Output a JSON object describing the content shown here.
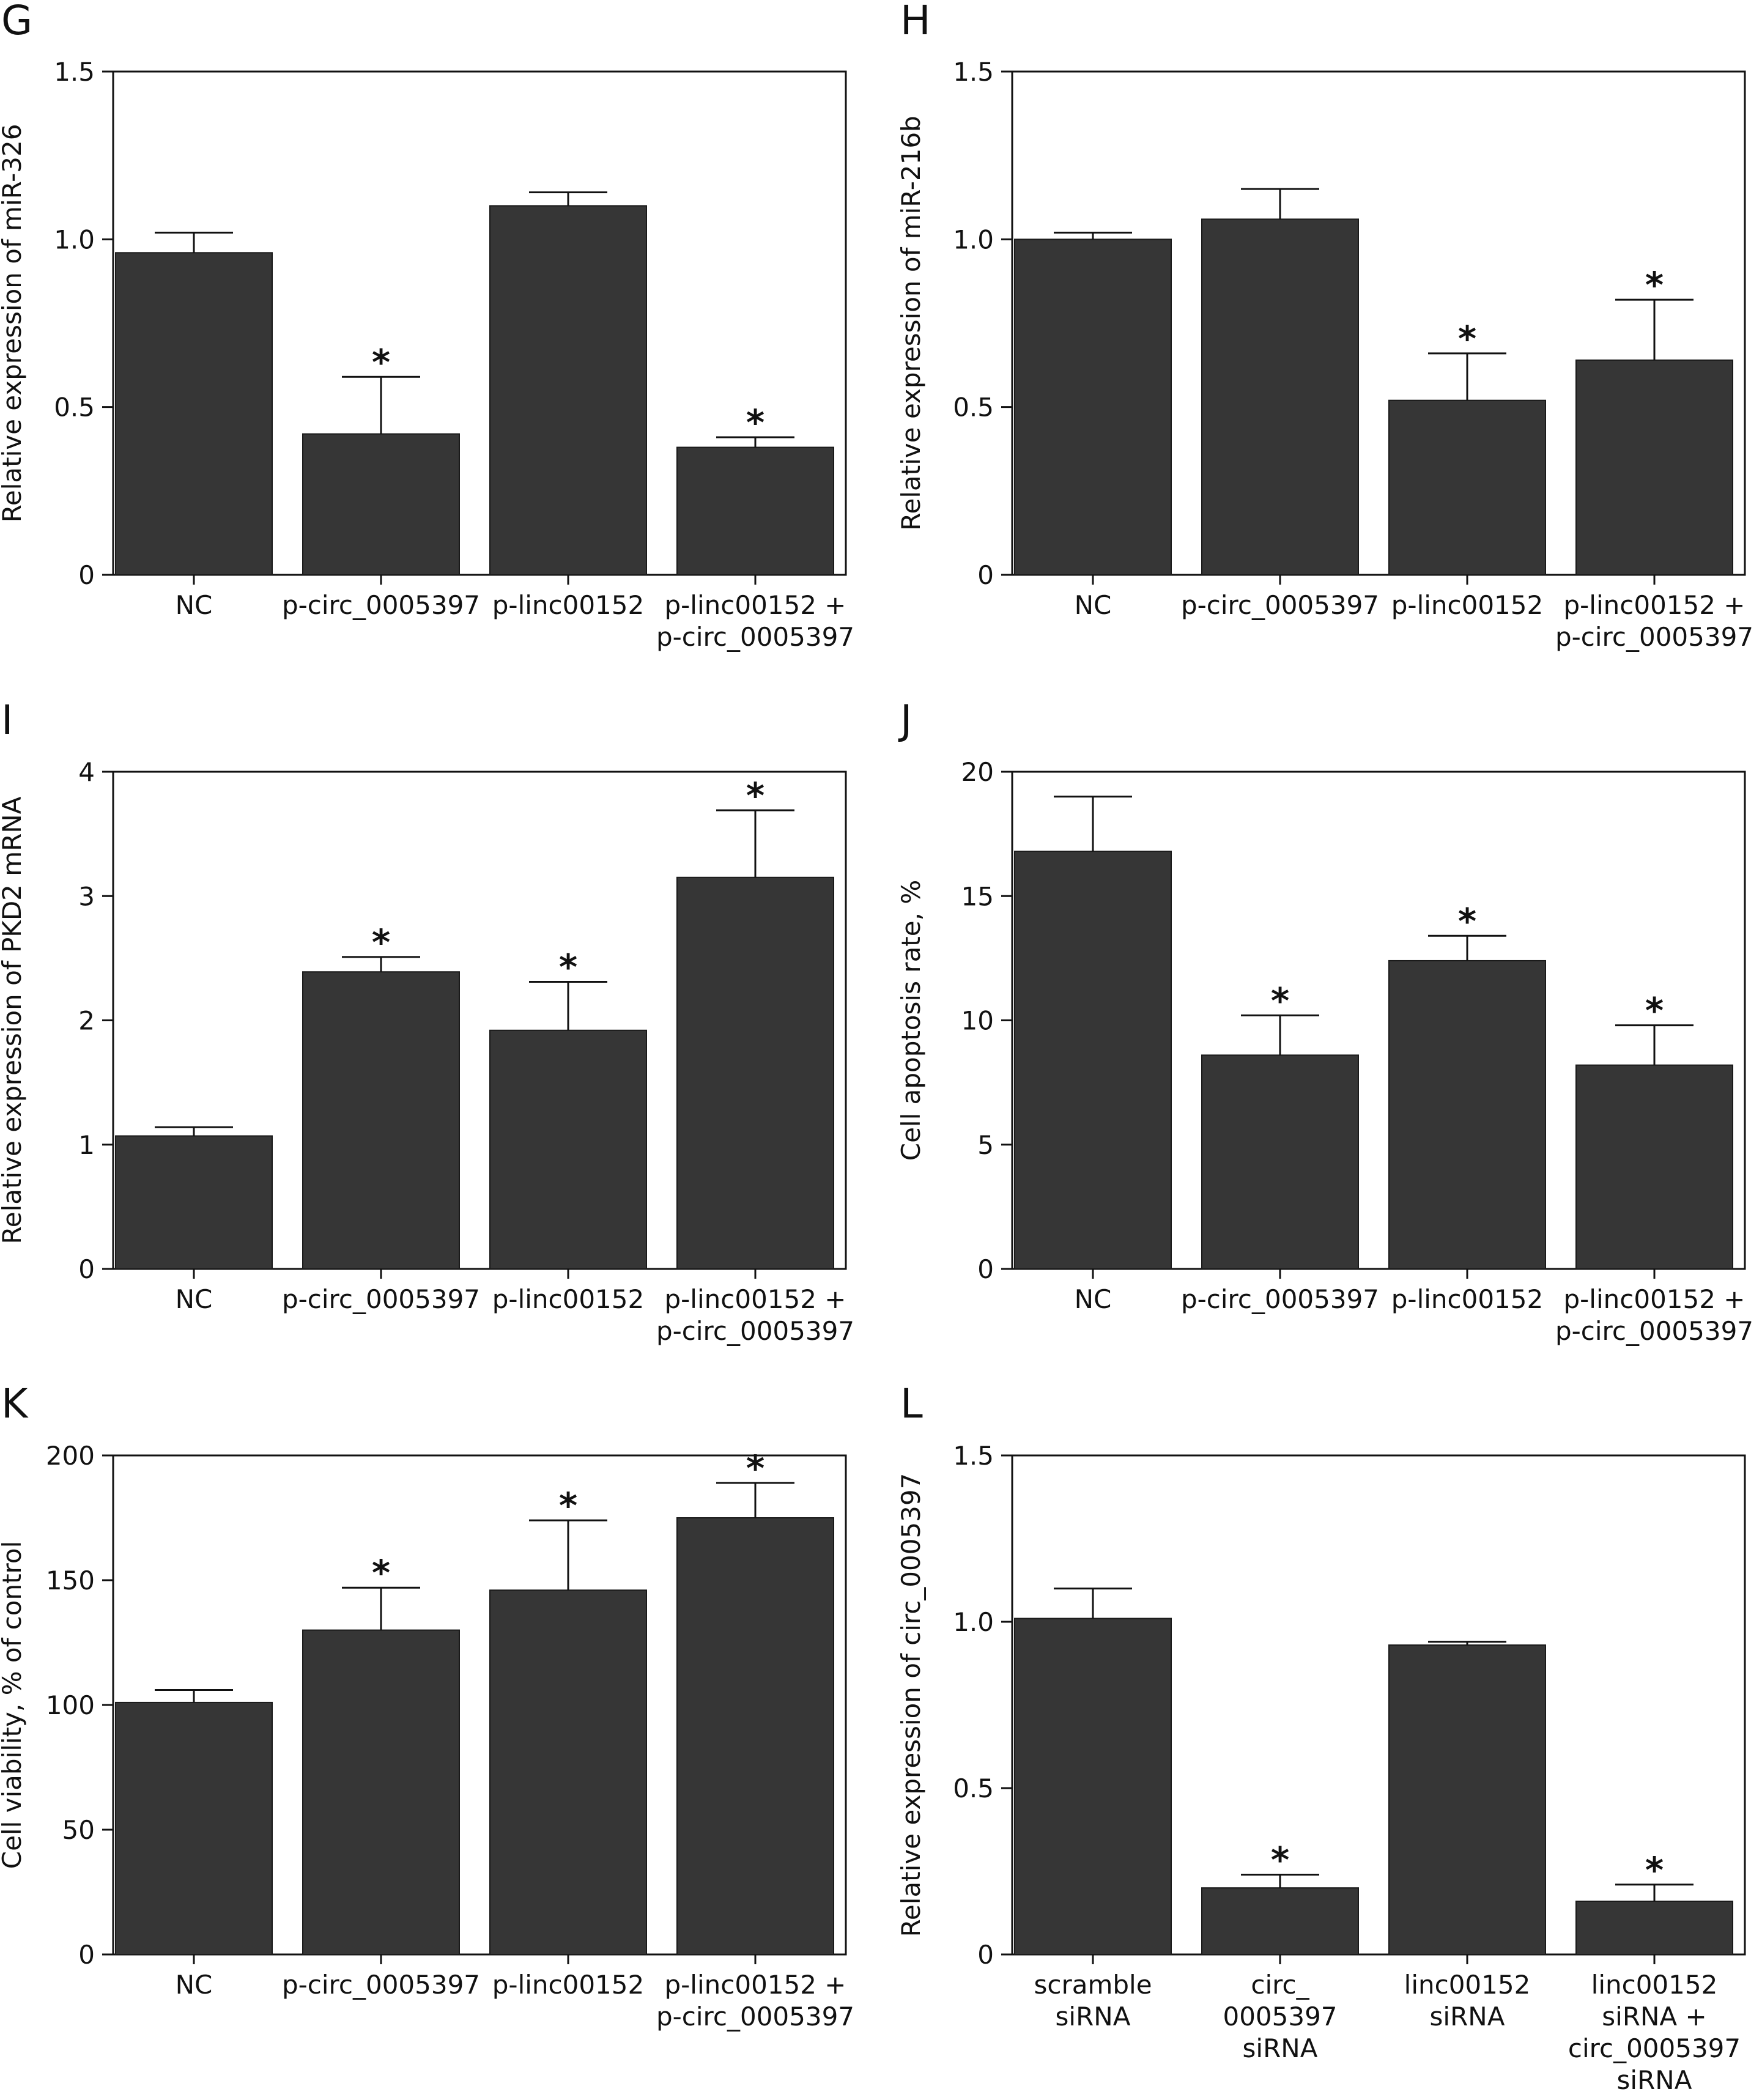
{
  "colors": {
    "bar": "#363636",
    "axis": "#111111",
    "background": "#ffffff"
  },
  "chart_data": [
    {
      "panel": "G",
      "type": "bar",
      "ylabel": "Relative expression of miR-326",
      "ylim": [
        0,
        1.5
      ],
      "yticks": [
        "0",
        "0.5",
        "1.0",
        "1.5"
      ],
      "categories": [
        [
          "NC"
        ],
        [
          "p-circ_0005397"
        ],
        [
          "p-linc00152"
        ],
        [
          "p-linc00152 +",
          "p-circ_0005397"
        ]
      ],
      "values": [
        0.96,
        0.42,
        1.1,
        0.38
      ],
      "errors": [
        0.06,
        0.17,
        0.04,
        0.03
      ],
      "significant": [
        false,
        true,
        false,
        true
      ],
      "marker": "*"
    },
    {
      "panel": "H",
      "type": "bar",
      "ylabel": "Relative expression of miR-216b",
      "ylim": [
        0,
        1.5
      ],
      "yticks": [
        "0",
        "0.5",
        "1.0",
        "1.5"
      ],
      "categories": [
        [
          "NC"
        ],
        [
          "p-circ_0005397"
        ],
        [
          "p-linc00152"
        ],
        [
          "p-linc00152 +",
          "p-circ_0005397"
        ]
      ],
      "values": [
        1.0,
        1.06,
        0.52,
        0.64
      ],
      "errors": [
        0.02,
        0.09,
        0.14,
        0.18
      ],
      "significant": [
        false,
        false,
        true,
        true
      ],
      "marker": "*"
    },
    {
      "panel": "I",
      "type": "bar",
      "ylabel": "Relative expression of PKD2 mRNA",
      "ylim": [
        0,
        4
      ],
      "yticks": [
        "0",
        "1",
        "2",
        "3",
        "4"
      ],
      "categories": [
        [
          "NC"
        ],
        [
          "p-circ_0005397"
        ],
        [
          "p-linc00152"
        ],
        [
          "p-linc00152 +",
          "p-circ_0005397"
        ]
      ],
      "values": [
        1.07,
        2.39,
        1.92,
        3.15
      ],
      "errors": [
        0.07,
        0.12,
        0.39,
        0.54
      ],
      "significant": [
        false,
        true,
        true,
        true
      ],
      "marker": "*"
    },
    {
      "panel": "J",
      "type": "bar",
      "ylabel": "Cell apoptosis rate, %",
      "ylim": [
        0,
        20
      ],
      "yticks": [
        "0",
        "5",
        "10",
        "15",
        "20"
      ],
      "categories": [
        [
          "NC"
        ],
        [
          "p-circ_0005397"
        ],
        [
          "p-linc00152"
        ],
        [
          "p-linc00152 +",
          "p-circ_0005397"
        ]
      ],
      "values": [
        16.8,
        8.6,
        12.4,
        8.2
      ],
      "errors": [
        2.2,
        1.6,
        1.0,
        1.6
      ],
      "significant": [
        false,
        true,
        true,
        true
      ],
      "marker": "*"
    },
    {
      "panel": "K",
      "type": "bar",
      "ylabel": "Cell viability, % of control",
      "ylim": [
        0,
        200
      ],
      "yticks": [
        "0",
        "50",
        "100",
        "150",
        "200"
      ],
      "categories": [
        [
          "NC"
        ],
        [
          "p-circ_0005397"
        ],
        [
          "p-linc00152"
        ],
        [
          "p-linc00152 +",
          "p-circ_0005397"
        ]
      ],
      "values": [
        101,
        130,
        146,
        175
      ],
      "errors": [
        5,
        17,
        28,
        14
      ],
      "significant": [
        false,
        true,
        true,
        true
      ],
      "marker": "*"
    },
    {
      "panel": "L",
      "type": "bar",
      "ylabel": "Relative expression of circ_0005397",
      "ylim": [
        0,
        1.5
      ],
      "yticks": [
        "0",
        "0.5",
        "1.0",
        "1.5"
      ],
      "categories": [
        [
          "scramble",
          "siRNA"
        ],
        [
          "circ_",
          "0005397",
          "siRNA"
        ],
        [
          "linc00152",
          "siRNA"
        ],
        [
          "linc00152",
          "siRNA +",
          "circ_0005397",
          "siRNA"
        ]
      ],
      "values": [
        1.01,
        0.2,
        0.93,
        0.16
      ],
      "errors": [
        0.09,
        0.04,
        0.01,
        0.05
      ],
      "significant": [
        false,
        true,
        false,
        true
      ],
      "marker": "*"
    }
  ]
}
